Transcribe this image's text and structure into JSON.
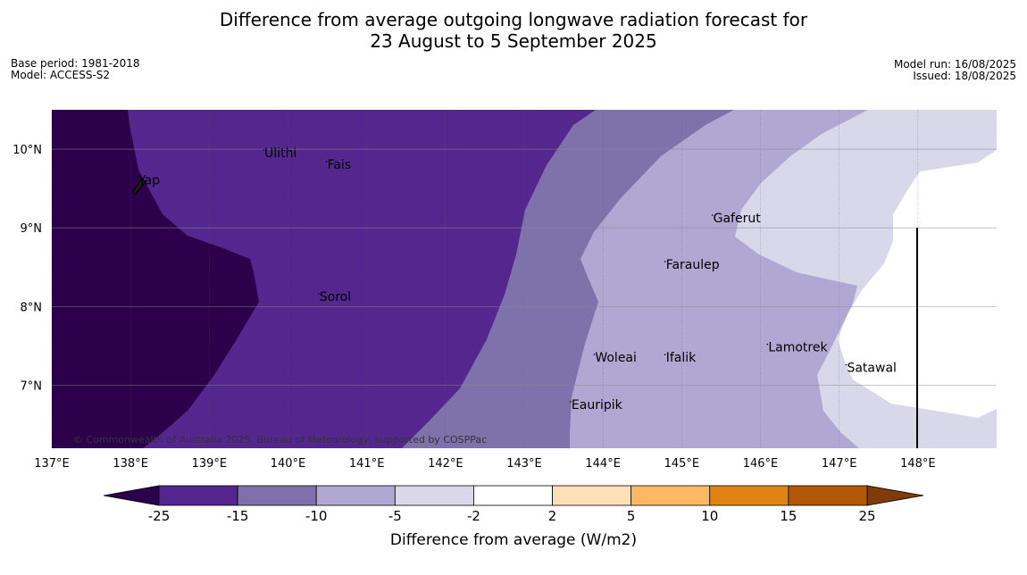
{
  "title": {
    "line1": "Difference from average outgoing longwave radiation forecast for",
    "line2": "23 August to 5 September 2025"
  },
  "info": {
    "base_period": "Base period: 1981-2018",
    "model": "Model: ACCESS-S2",
    "model_run": "Model run: 16/08/2025",
    "issued": "Issued: 18/08/2025"
  },
  "copyright": "© Commonwealth of Australia 2025, Bureau of Meteorology, supported by COSPPac",
  "map": {
    "lon_range": [
      137,
      149
    ],
    "lat_range": [
      6.2,
      10.5
    ],
    "lon_ticks": [
      {
        "value": 137,
        "label": "137°E"
      },
      {
        "value": 138,
        "label": "138°E"
      },
      {
        "value": 139,
        "label": "139°E"
      },
      {
        "value": 140,
        "label": "140°E"
      },
      {
        "value": 141,
        "label": "141°E"
      },
      {
        "value": 142,
        "label": "142°E"
      },
      {
        "value": 143,
        "label": "143°E"
      },
      {
        "value": 144,
        "label": "144°E"
      },
      {
        "value": 145,
        "label": "145°E"
      },
      {
        "value": 146,
        "label": "146°E"
      },
      {
        "value": 147,
        "label": "147°E"
      },
      {
        "value": 148,
        "label": "148°E"
      }
    ],
    "lat_ticks": [
      {
        "value": 10,
        "label": "10°N"
      },
      {
        "value": 9,
        "label": "9°N"
      },
      {
        "value": 8,
        "label": "8°N"
      },
      {
        "value": 7,
        "label": "7°N"
      }
    ],
    "places": [
      {
        "name": "Yap",
        "lon": 138.1,
        "lat": 9.55
      },
      {
        "name": "Ulithi",
        "lon": 139.7,
        "lat": 9.9
      },
      {
        "name": "Fais",
        "lon": 140.5,
        "lat": 9.75
      },
      {
        "name": "Sorol",
        "lon": 140.4,
        "lat": 8.07
      },
      {
        "name": "Gaferut",
        "lon": 145.4,
        "lat": 9.07
      },
      {
        "name": "Faraulep",
        "lon": 144.8,
        "lat": 8.48
      },
      {
        "name": "Lamotrek",
        "lon": 146.1,
        "lat": 7.43
      },
      {
        "name": "Woleai",
        "lon": 143.9,
        "lat": 7.3
      },
      {
        "name": "Ifalik",
        "lon": 144.8,
        "lat": 7.3
      },
      {
        "name": "Satawal",
        "lon": 147.1,
        "lat": 7.17
      },
      {
        "name": "Eauripik",
        "lon": 143.6,
        "lat": 6.7
      }
    ]
  },
  "colorbar": {
    "label": "Difference from average (W/m2)",
    "ticks": [
      "-25",
      "-15",
      "-10",
      "-5",
      "-2",
      "2",
      "5",
      "10",
      "15",
      "25"
    ],
    "colors": [
      "#54278f",
      "#7f6fab",
      "#b0a8d2",
      "#d8d8ea",
      "#ffffff",
      "#fee0b6",
      "#fdb863",
      "#e08214",
      "#b35806"
    ],
    "under_color": "#2d004b",
    "over_color": "#7f3b08"
  },
  "colors": {
    "lt_-15": "#2d004b",
    "-15_-10": "#54278f",
    "-10_-5": "#7f72ab",
    "-5_-2": "#b0a8d2",
    "-2_2": "#d8d8ea",
    "near_zero": "#ffffff"
  }
}
